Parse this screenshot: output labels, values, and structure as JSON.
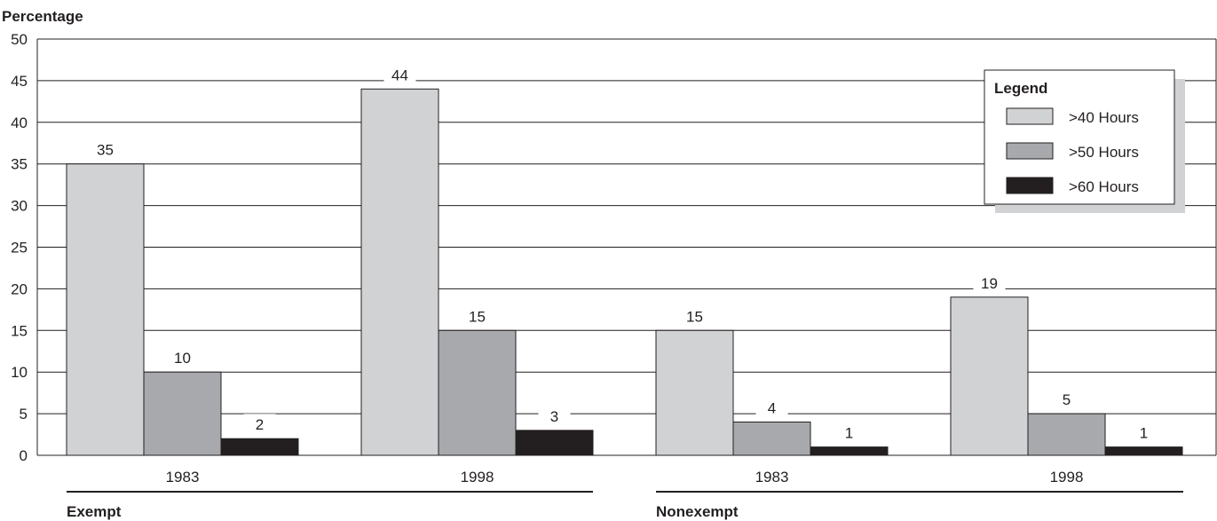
{
  "chart_data": {
    "type": "bar",
    "ylabel": "Percentage",
    "ylim": [
      0,
      50
    ],
    "yticks": [
      0,
      5,
      10,
      15,
      20,
      25,
      30,
      35,
      40,
      45,
      50
    ],
    "grid": true,
    "legend": {
      "title": "Legend",
      "placement": "top-right"
    },
    "groups": [
      {
        "name": "Exempt",
        "categories": [
          "1983",
          "1998"
        ]
      },
      {
        "name": "Nonexempt",
        "categories": [
          "1983",
          "1998"
        ]
      }
    ],
    "categories": [
      "1983",
      "1998",
      "1983",
      "1998"
    ],
    "series": [
      {
        "name": ">40 Hours",
        "color": "#d1d2d4",
        "values": [
          35,
          44,
          15,
          19
        ]
      },
      {
        "name": ">50 Hours",
        "color": "#a7a9ac",
        "values": [
          10,
          15,
          4,
          5
        ]
      },
      {
        "name": ">60 Hours",
        "color": "#231f20",
        "values": [
          2,
          3,
          1,
          1
        ]
      }
    ]
  }
}
